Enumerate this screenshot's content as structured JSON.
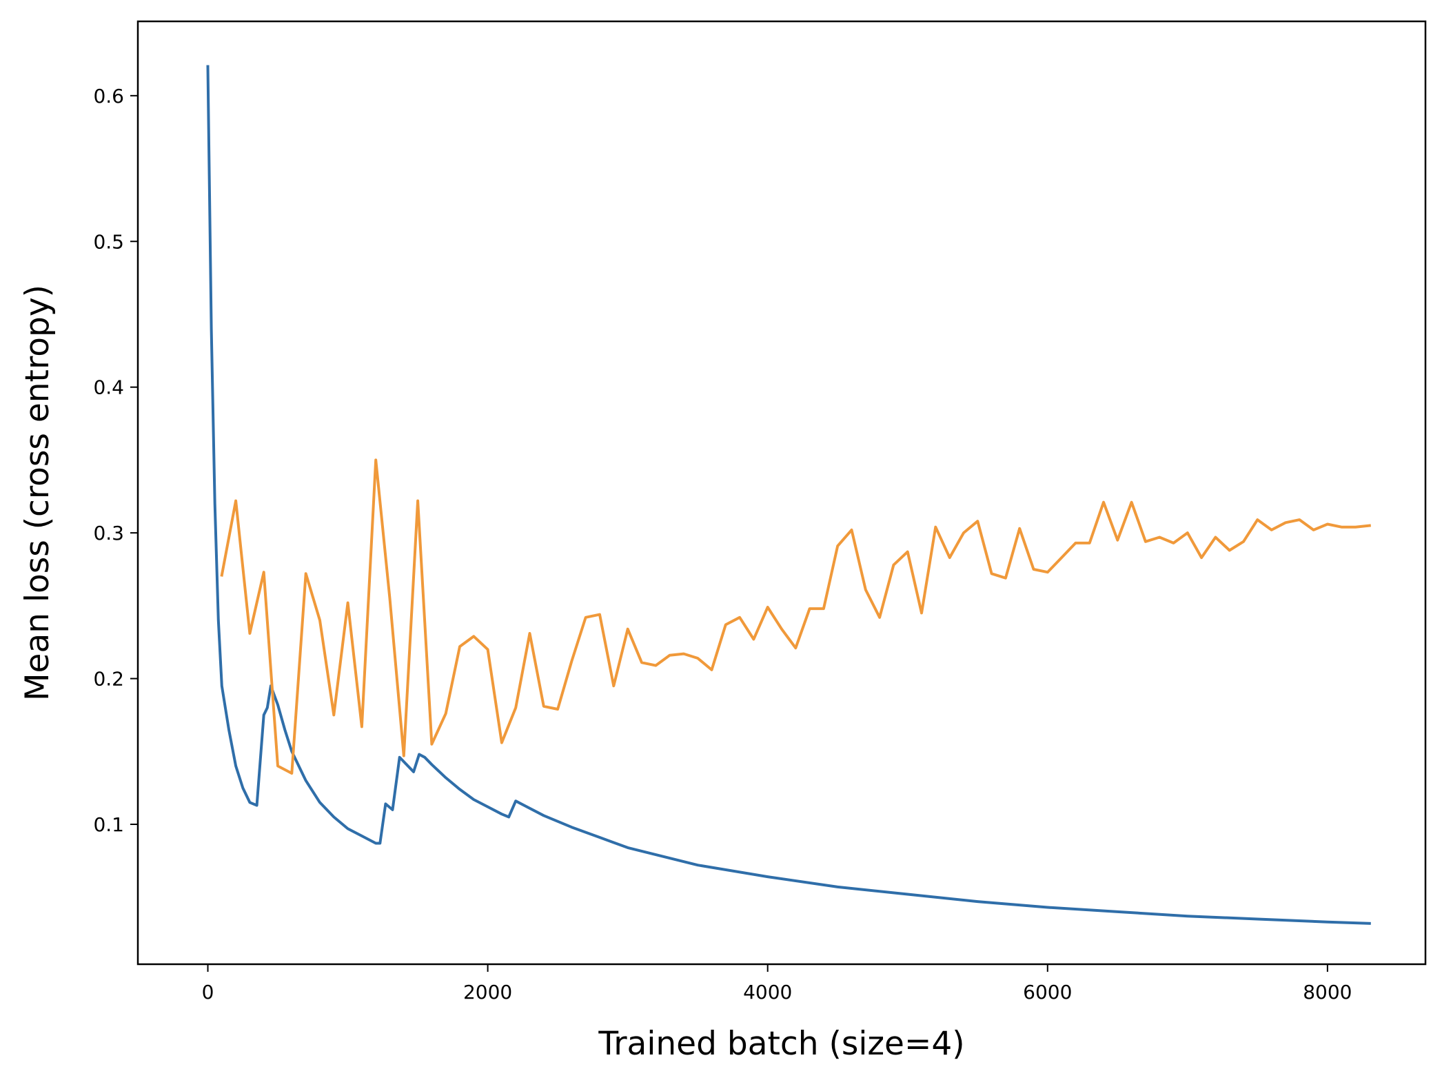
{
  "chart_data": {
    "type": "line",
    "xlabel": "Trained batch (size=4)",
    "ylabel": "Mean loss (cross entropy)",
    "xlim": [
      -500,
      8700
    ],
    "ylim": [
      0.004,
      0.651
    ],
    "xticks": [
      0,
      2000,
      4000,
      6000,
      8000
    ],
    "yticks": [
      0.1,
      0.2,
      0.3,
      0.4,
      0.5,
      0.6
    ],
    "xtick_labels": [
      "0",
      "2000",
      "4000",
      "6000",
      "8000"
    ],
    "ytick_labels": [
      "0.1",
      "0.2",
      "0.3",
      "0.4",
      "0.5",
      "0.6"
    ],
    "grid": false,
    "legend": "none",
    "series": [
      {
        "color": "#2f6ea9",
        "x": [
          0,
          25,
          50,
          75,
          100,
          150,
          200,
          250,
          300,
          350,
          400,
          425,
          450,
          500,
          550,
          600,
          700,
          800,
          900,
          1000,
          1100,
          1200,
          1230,
          1270,
          1320,
          1370,
          1470,
          1510,
          1550,
          1600,
          1700,
          1800,
          1900,
          2000,
          2100,
          2150,
          2200,
          2400,
          2600,
          2800,
          3000,
          3500,
          4000,
          4500,
          5000,
          5500,
          6000,
          6500,
          7000,
          7500,
          8000,
          8300
        ],
        "y": [
          0.62,
          0.44,
          0.32,
          0.24,
          0.195,
          0.165,
          0.14,
          0.125,
          0.115,
          0.113,
          0.175,
          0.18,
          0.195,
          0.182,
          0.165,
          0.15,
          0.13,
          0.115,
          0.105,
          0.097,
          0.092,
          0.087,
          0.087,
          0.114,
          0.11,
          0.146,
          0.136,
          0.148,
          0.146,
          0.141,
          0.132,
          0.124,
          0.117,
          0.112,
          0.107,
          0.105,
          0.116,
          0.106,
          0.098,
          0.091,
          0.084,
          0.072,
          0.064,
          0.057,
          0.052,
          0.047,
          0.043,
          0.04,
          0.037,
          0.035,
          0.033,
          0.032
        ]
      },
      {
        "color": "#f0993a",
        "x": [
          100,
          200,
          300,
          400,
          500,
          600,
          700,
          800,
          900,
          1000,
          1100,
          1200,
          1300,
          1400,
          1500,
          1600,
          1700,
          1800,
          1900,
          2000,
          2100,
          2200,
          2300,
          2400,
          2500,
          2600,
          2700,
          2800,
          2900,
          3000,
          3100,
          3200,
          3300,
          3400,
          3500,
          3600,
          3700,
          3800,
          3900,
          4000,
          4100,
          4200,
          4300,
          4400,
          4500,
          4600,
          4700,
          4800,
          4900,
          5000,
          5100,
          5200,
          5300,
          5400,
          5500,
          5600,
          5700,
          5800,
          5900,
          6000,
          6100,
          6200,
          6300,
          6400,
          6500,
          6600,
          6700,
          6800,
          6900,
          7000,
          7100,
          7200,
          7300,
          7400,
          7500,
          7600,
          7700,
          7800,
          7900,
          8000,
          8100,
          8200,
          8300
        ],
        "y": [
          0.271,
          0.322,
          0.231,
          0.273,
          0.14,
          0.135,
          0.272,
          0.24,
          0.175,
          0.252,
          0.167,
          0.35,
          0.255,
          0.147,
          0.322,
          0.155,
          0.176,
          0.222,
          0.229,
          0.22,
          0.156,
          0.18,
          0.231,
          0.181,
          0.179,
          0.212,
          0.242,
          0.244,
          0.195,
          0.234,
          0.211,
          0.209,
          0.216,
          0.217,
          0.214,
          0.206,
          0.237,
          0.242,
          0.227,
          0.249,
          0.234,
          0.221,
          0.248,
          0.248,
          0.291,
          0.302,
          0.261,
          0.242,
          0.278,
          0.287,
          0.245,
          0.304,
          0.283,
          0.3,
          0.308,
          0.272,
          0.269,
          0.303,
          0.275,
          0.273,
          0.283,
          0.293,
          0.293,
          0.321,
          0.295,
          0.321,
          0.294,
          0.297,
          0.293,
          0.3,
          0.283,
          0.297,
          0.288,
          0.294,
          0.309,
          0.302,
          0.307,
          0.309,
          0.302,
          0.306,
          0.304,
          0.304,
          0.305
        ]
      }
    ]
  }
}
